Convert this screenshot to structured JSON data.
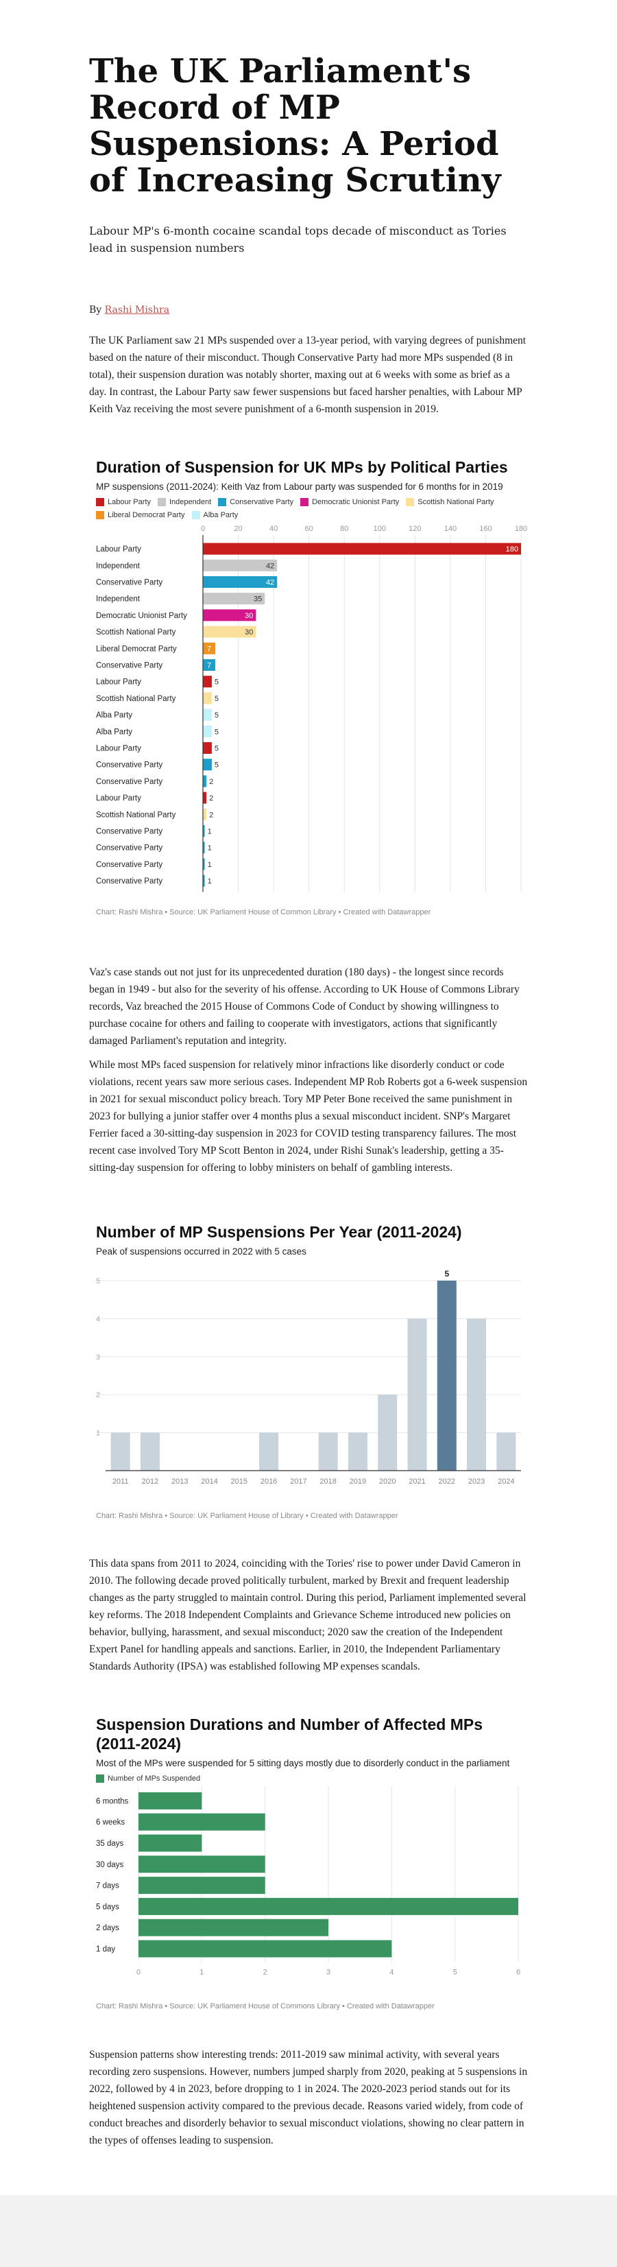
{
  "article": {
    "title": "The UK Parliament's Record of MP Suspensions: A Period of Increasing Scrutiny",
    "subtitle": "Labour MP's 6-month cocaine scandal tops decade of misconduct as Tories lead in suspension numbers",
    "byline_prefix": "By",
    "author": "Rashi Mishra",
    "paragraphs": [
      "The UK Parliament saw 21 MPs suspended over a 13-year period, with varying degrees of punishment based on the nature of their misconduct. Though Conservative Party had more MPs suspended (8 in total), their suspension duration was notably shorter, maxing out at 6 weeks with some as brief as a day. In contrast, the Labour Party saw fewer suspensions but faced harsher penalties, with Labour MP Keith Vaz receiving the most severe punishment of a 6-month suspension in 2019.",
      "Vaz's case stands out not just for its unprecedented duration (180 days) - the longest since records began in 1949 - but also for the severity of his offense. According to UK House of Commons Library records, Vaz breached the 2015 House of Commons Code of Conduct by showing willingness to purchase cocaine for others and failing to cooperate with investigators, actions that significantly damaged Parliament's reputation and integrity.",
      "While most MPs faced suspension for relatively minor infractions like disorderly conduct or code violations, recent years saw more serious cases. Independent MP Rob Roberts got a 6-week suspension in 2021 for sexual misconduct policy breach. Tory MP Peter Bone received the same punishment in 2023 for bullying a junior staffer over 4 months plus a sexual misconduct incident. SNP's Margaret Ferrier faced a 30-sitting-day suspension in 2023 for COVID testing transparency failures. The most recent case involved Tory MP Scott Benton in 2024, under Rishi Sunak's leadership, getting a 35-sitting-day suspension for offering to lobby ministers on behalf of gambling interests.",
      "This data spans from 2011 to 2024, coinciding with the Tories' rise to power under David Cameron in 2010. The following decade proved politically turbulent, marked by Brexit and frequent leadership changes as the party struggled to maintain control. During this period, Parliament implemented several key reforms. The 2018 Independent Complaints and Grievance Scheme introduced new policies on behavior, bullying, harassment, and sexual misconduct; 2020 saw the creation of the Independent Expert Panel for handling appeals and sanctions. Earlier, in 2010, the Independent Parliamentary Standards Authority (IPSA) was established following MP expenses scandals.",
      "Suspension patterns show interesting trends: 2011-2019 saw minimal activity, with several years recording zero suspensions. However, numbers jumped sharply from 2020, peaking at 5 suspensions in 2022, followed by 4 in 2023, before dropping to 1 in 2024. The 2020-2023 period stands out for its heightened suspension activity compared to the previous decade. Reasons varied widely, from code of conduct breaches and disorderly behavior to sexual misconduct violations, showing no clear pattern in the types of offenses leading to suspension."
    ]
  },
  "colors": {
    "Labour Party": "#c71e1d",
    "Independent": "#c8c8c8",
    "Conservative Party": "#1d9fc9",
    "Democratic Unionist Party": "#d6178b",
    "Scottish National Party": "#fbe09b",
    "Liberal Democrat Party": "#f0921e",
    "Alba Party": "#c2f2f9",
    "year_bar": "#c8d3dc",
    "year_highlight": "#5b7c99",
    "duration_bar": "#3a9460"
  },
  "chart_data": [
    {
      "type": "bar",
      "orientation": "horizontal",
      "title": "Duration of Suspension for UK MPs by Political Parties",
      "subtitle": "MP suspensions (2011-2024): Keith Vaz from Labour party was suspended for 6 months for in 2019",
      "legend": [
        "Labour Party",
        "Independent",
        "Conservative Party",
        "Democratic Unionist Party",
        "Scottish National Party",
        "Liberal Democrat Party",
        "Alba Party"
      ],
      "legend_position": "top",
      "xlim": [
        0,
        180
      ],
      "xticks": [
        0,
        20,
        40,
        60,
        80,
        100,
        120,
        140,
        160,
        180
      ],
      "grid": true,
      "categories": [
        "Labour Party",
        "Independent",
        "Conservative Party",
        "Independent",
        "Democratic Unionist Party",
        "Scottish National Party",
        "Liberal Democrat Party",
        "Conservative Party",
        "Labour Party",
        "Scottish National Party",
        "Alba Party",
        "Alba Party",
        "Labour Party",
        "Conservative Party",
        "Conservative Party",
        "Labour Party",
        "Scottish National Party",
        "Conservative Party",
        "Conservative Party",
        "Conservative Party",
        "Conservative Party"
      ],
      "values": [
        180,
        42,
        42,
        35,
        30,
        30,
        7,
        7,
        5,
        5,
        5,
        5,
        5,
        5,
        2,
        2,
        2,
        1,
        1,
        1,
        1
      ],
      "footer": "Chart: Rashi Mishra • Source: UK Parliament House of Common Library • Created with Datawrapper"
    },
    {
      "type": "bar",
      "title": "Number of MP Suspensions Per Year (2011-2024)",
      "subtitle": "Peak of suspensions occurred in 2022 with 5 cases",
      "categories": [
        "2011",
        "2012",
        "2013",
        "2014",
        "2015",
        "2016",
        "2017",
        "2018",
        "2019",
        "2020",
        "2021",
        "2022",
        "2023",
        "2024"
      ],
      "values": [
        1,
        1,
        0,
        0,
        0,
        1,
        0,
        1,
        1,
        2,
        4,
        5,
        4,
        1
      ],
      "ylim": [
        0,
        5
      ],
      "yticks": [
        1,
        2,
        3,
        4,
        5
      ],
      "highlight": "2022",
      "grid": true,
      "footer": "Chart: Rashi Mishra • Source: UK Parliament House of Library • Created with Datawrapper"
    },
    {
      "type": "bar",
      "orientation": "horizontal",
      "title": "Suspension Durations and Number of Affected MPs (2011-2024)",
      "subtitle": "Most of the MPs were suspended for 5 sitting days mostly due to disorderly conduct in the parliament",
      "series": [
        {
          "name": "Number of MPs Suspended",
          "values": [
            1,
            2,
            1,
            2,
            2,
            6,
            3,
            4
          ]
        }
      ],
      "categories": [
        "6 months",
        "6 weeks",
        "35 days",
        "30 days",
        "7 days",
        "5 days",
        "2 days",
        "1 day"
      ],
      "xlim": [
        0,
        6
      ],
      "xticks": [
        0,
        1,
        2,
        3,
        4,
        5,
        6
      ],
      "grid": true,
      "legend_position": "top",
      "footer": "Chart: Rashi Mishra • Source: UK Parliament House of Commons Library • Created with Datawrapper"
    }
  ]
}
